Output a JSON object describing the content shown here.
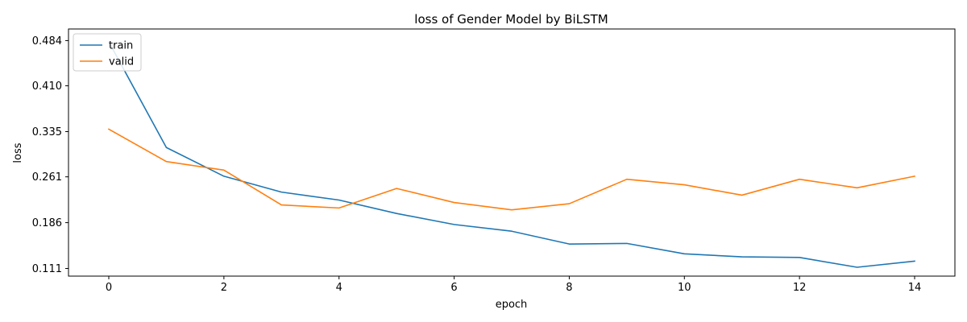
{
  "chart_data": {
    "type": "line",
    "title": "loss of Gender Model by BiLSTM",
    "xlabel": "epoch",
    "ylabel": "loss",
    "x": [
      0,
      1,
      2,
      3,
      4,
      5,
      6,
      7,
      8,
      9,
      10,
      11,
      12,
      13,
      14
    ],
    "xticks": [
      0,
      2,
      4,
      6,
      8,
      10,
      12,
      14
    ],
    "yticks": [
      "0.111",
      "0.186",
      "0.261",
      "0.335",
      "0.410",
      "0.484"
    ],
    "xlim": [
      -0.7,
      14.7
    ],
    "ylim": [
      0.0985,
      0.503
    ],
    "grid": false,
    "legend_placement": "top-left",
    "series": [
      {
        "name": "train",
        "color": "#1f77b4",
        "values": [
          0.482,
          0.309,
          0.262,
          0.236,
          0.223,
          0.201,
          0.183,
          0.172,
          0.151,
          0.152,
          0.135,
          0.13,
          0.129,
          0.113,
          0.123
        ]
      },
      {
        "name": "valid",
        "color": "#ff7f0e",
        "values": [
          0.339,
          0.286,
          0.272,
          0.215,
          0.21,
          0.242,
          0.219,
          0.207,
          0.217,
          0.257,
          0.248,
          0.231,
          0.257,
          0.243,
          0.262
        ]
      }
    ]
  }
}
